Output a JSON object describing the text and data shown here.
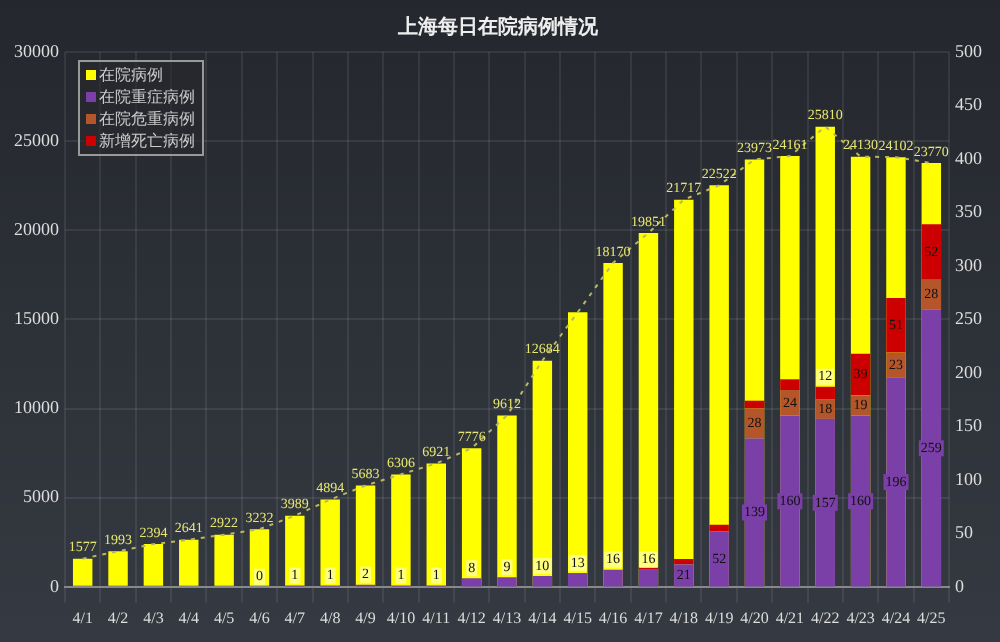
{
  "chart_data": {
    "type": "bar",
    "title": "上海每日在院病例情况",
    "categories": [
      "4/1",
      "4/2",
      "4/3",
      "4/4",
      "4/5",
      "4/6",
      "4/7",
      "4/8",
      "4/9",
      "4/10",
      "4/11",
      "4/12",
      "4/13",
      "4/14",
      "4/15",
      "4/16",
      "4/17",
      "4/18",
      "4/19",
      "4/20",
      "4/21",
      "4/22",
      "4/23",
      "4/24",
      "4/25"
    ],
    "series": [
      {
        "name": "在院病例",
        "color": "#ffff00",
        "values": [
          1577,
          1993,
          2394,
          2641,
          2922,
          3232,
          3989,
          4894,
          5683,
          6306,
          6921,
          7776,
          9612,
          12684,
          15400,
          18170,
          19851,
          21717,
          22522,
          23973,
          24161,
          25810,
          24130,
          24102,
          23770
        ],
        "value_labels": [
          "1577",
          "1993",
          "2394",
          "2641",
          "2922",
          "3232",
          "3989",
          "4894",
          "5683",
          "6306",
          "6921",
          "7776",
          "9612",
          "12684",
          null,
          "18170",
          "19851",
          "21717",
          "22522",
          "23973",
          "24161",
          "25810",
          "24130",
          "24102",
          "23770"
        ]
      },
      {
        "type": "line",
        "color": "#b8b860",
        "line_style": "dotted",
        "marker": "none",
        "values": [
          1577,
          1993,
          2394,
          2641,
          2922,
          3232,
          3989,
          4894,
          5683,
          6306,
          6921,
          7776,
          9612,
          12684,
          15400,
          18170,
          19851,
          21717,
          22522,
          23973,
          24161,
          25810,
          24130,
          24102,
          23770
        ]
      },
      {
        "name": "在院重症病例",
        "color": "#7b3fa8",
        "axis": "y2",
        "values": [
          null,
          null,
          null,
          null,
          null,
          0,
          1,
          1,
          2,
          1,
          1,
          8,
          9,
          10,
          13,
          16,
          16,
          21,
          52,
          139,
          160,
          157,
          160,
          196,
          259
        ],
        "value_labels": [
          null,
          null,
          null,
          null,
          null,
          "0",
          "1",
          "1",
          "2",
          "1",
          "1",
          "8",
          "9",
          "10",
          "13",
          "16",
          "16",
          "21",
          "52",
          "139",
          "160",
          "157",
          "160",
          "196",
          "259"
        ]
      },
      {
        "name": "在院危重病例",
        "color": "#b5562a",
        "axis": "y2",
        "values": [
          null,
          null,
          null,
          null,
          null,
          null,
          null,
          null,
          null,
          null,
          null,
          null,
          null,
          null,
          null,
          null,
          null,
          null,
          null,
          28,
          24,
          18,
          19,
          23,
          28
        ],
        "value_labels": [
          null,
          null,
          null,
          null,
          null,
          null,
          null,
          null,
          null,
          null,
          null,
          null,
          null,
          null,
          null,
          null,
          null,
          null,
          null,
          "28",
          "24",
          "18",
          "19",
          "23",
          "28"
        ]
      },
      {
        "name": "新增死亡病例",
        "color": "#cc0000",
        "axis": "y2",
        "values": [
          null,
          null,
          null,
          null,
          null,
          null,
          null,
          null,
          null,
          null,
          null,
          null,
          null,
          null,
          null,
          null,
          2,
          5,
          6,
          7,
          10,
          12,
          39,
          51,
          52
        ],
        "value_labels": [
          null,
          null,
          null,
          null,
          null,
          null,
          null,
          null,
          null,
          null,
          null,
          null,
          null,
          null,
          null,
          null,
          null,
          null,
          null,
          null,
          null,
          "12",
          "39",
          "51",
          "52"
        ]
      }
    ],
    "stacked": true,
    "ylim": [
      0,
      30000
    ],
    "yticks": [
      0,
      5000,
      10000,
      15000,
      20000,
      25000,
      30000
    ],
    "y2lim": [
      0,
      500
    ],
    "y2ticks": [
      0,
      50,
      100,
      150,
      200,
      250,
      300,
      350,
      400,
      450,
      500
    ],
    "grid": true,
    "legend": "top left"
  }
}
